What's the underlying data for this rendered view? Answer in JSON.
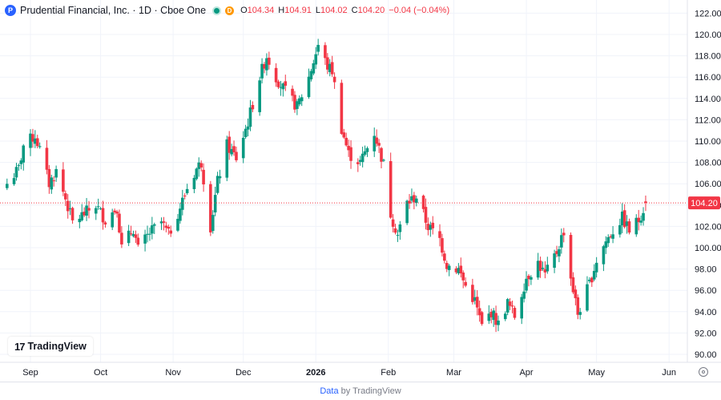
{
  "legend": {
    "logo_letter": "P",
    "title": "Prudential Financial, Inc. · 1D · Cboe One",
    "badge": "D",
    "open_label": "O",
    "open": "104.34",
    "high_label": "H",
    "high": "104.91",
    "low_label": "L",
    "low": "104.02",
    "close_label": "C",
    "close": "104.20",
    "change": "−0.04 (−0.04%)"
  },
  "branding": {
    "logo_mark": "17",
    "name": "TradingView"
  },
  "footer": {
    "data_link": "Data",
    "by": " by TradingView"
  },
  "colors": {
    "up": "#089981",
    "down": "#f23645",
    "grid": "#f0f3fa",
    "price_label": "#f23645"
  },
  "chart_data": {
    "type": "candlestick",
    "title": "Prudential Financial, Inc. · 1D · Cboe One",
    "ylim": [
      89,
      123
    ],
    "y_ticks": [
      90,
      92,
      94,
      96,
      98,
      100,
      102,
      104,
      106,
      108,
      110,
      112,
      114,
      116,
      118,
      120,
      122
    ],
    "y_tick_labels": [
      "90.00",
      "92.00",
      "94.00",
      "96.00",
      "98.00",
      "100.00",
      "102.00",
      "104.00",
      "106.00",
      "108.00",
      "110.00",
      "112.00",
      "114.00",
      "116.00",
      "118.00",
      "120.00",
      "122.00"
    ],
    "x_tick_labels": [
      "Sep",
      "Oct",
      "Nov",
      "Dec",
      "2026",
      "Feb",
      "Mar",
      "Apr",
      "May",
      "Jun"
    ],
    "x_tick_dates": [
      "2025-09-01",
      "2025-10-01",
      "2025-11-01",
      "2025-12-01",
      "2026-01-01",
      "2026-02-01",
      "2026-03-01",
      "2026-04-01",
      "2026-05-01",
      "2026-06-01"
    ],
    "last_price": 104.2,
    "last_price_label": "104.20",
    "grid": true,
    "close_anchors": [
      [
        "2025-08-22",
        106.0
      ],
      [
        "2025-08-27",
        107.4
      ],
      [
        "2025-08-29",
        109.6
      ],
      [
        "2025-09-03",
        110.5
      ],
      [
        "2025-09-05",
        109.2
      ],
      [
        "2025-09-09",
        106.0
      ],
      [
        "2025-09-12",
        107.2
      ],
      [
        "2025-09-16",
        104.6
      ],
      [
        "2025-09-19",
        102.4
      ],
      [
        "2025-09-24",
        103.2
      ],
      [
        "2025-09-29",
        104.0
      ],
      [
        "2025-10-03",
        102.6
      ],
      [
        "2025-10-08",
        103.8
      ],
      [
        "2025-10-10",
        100.0
      ],
      [
        "2025-10-15",
        101.8
      ],
      [
        "2025-10-17",
        99.8
      ],
      [
        "2025-10-22",
        101.4
      ],
      [
        "2025-10-27",
        102.4
      ],
      [
        "2025-10-30",
        101.2
      ],
      [
        "2025-11-04",
        103.8
      ],
      [
        "2025-11-07",
        105.6
      ],
      [
        "2025-11-11",
        107.4
      ],
      [
        "2025-11-13",
        108.0
      ],
      [
        "2025-11-17",
        102.0
      ],
      [
        "2025-11-20",
        106.2
      ],
      [
        "2025-11-24",
        109.6
      ],
      [
        "2025-11-28",
        108.4
      ],
      [
        "2025-12-03",
        111.8
      ],
      [
        "2025-12-08",
        116.0
      ],
      [
        "2025-12-11",
        118.0
      ],
      [
        "2025-12-15",
        116.0
      ],
      [
        "2025-12-19",
        114.6
      ],
      [
        "2025-12-24",
        113.2
      ],
      [
        "2025-12-29",
        116.0
      ],
      [
        "2026-01-02",
        119.0
      ],
      [
        "2026-01-06",
        117.0
      ],
      [
        "2026-01-08",
        116.6
      ],
      [
        "2026-01-12",
        111.2
      ],
      [
        "2026-01-15",
        108.8
      ],
      [
        "2026-01-20",
        108.0
      ],
      [
        "2026-01-26",
        110.8
      ],
      [
        "2026-01-30",
        107.8
      ],
      [
        "2026-02-02",
        103.2
      ],
      [
        "2026-02-05",
        101.2
      ],
      [
        "2026-02-09",
        104.2
      ],
      [
        "2026-02-13",
        104.8
      ],
      [
        "2026-02-18",
        102.0
      ],
      [
        "2026-02-23",
        100.8
      ],
      [
        "2026-02-26",
        98.4
      ],
      [
        "2026-03-03",
        98.0
      ],
      [
        "2026-03-06",
        96.4
      ],
      [
        "2026-03-10",
        95.0
      ],
      [
        "2026-03-13",
        92.6
      ],
      [
        "2026-03-17",
        94.0
      ],
      [
        "2026-03-20",
        92.8
      ],
      [
        "2026-03-24",
        94.8
      ],
      [
        "2026-03-27",
        93.6
      ],
      [
        "2026-04-01",
        97.2
      ],
      [
        "2026-04-06",
        98.6
      ],
      [
        "2026-04-09",
        97.4
      ],
      [
        "2026-04-14",
        99.6
      ],
      [
        "2026-04-17",
        101.6
      ],
      [
        "2026-04-20",
        97.2
      ],
      [
        "2026-04-23",
        93.8
      ],
      [
        "2026-04-28",
        96.6
      ],
      [
        "2026-05-01",
        98.8
      ],
      [
        "2026-05-05",
        100.6
      ],
      [
        "2026-05-08",
        101.6
      ],
      [
        "2026-05-12",
        102.8
      ],
      [
        "2026-05-15",
        101.6
      ],
      [
        "2026-05-19",
        102.6
      ],
      [
        "2026-05-22",
        104.2
      ]
    ]
  }
}
